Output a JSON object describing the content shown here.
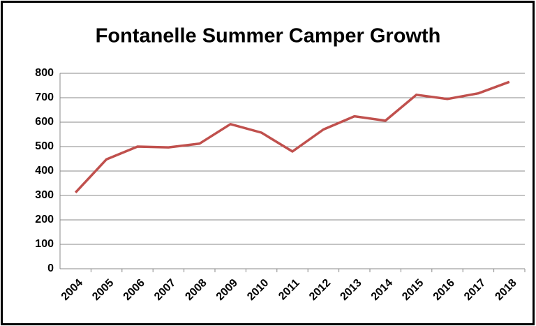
{
  "chart_data": {
    "type": "line",
    "title": "Fontanelle Summer Camper Growth",
    "categories": [
      "2004",
      "2005",
      "2006",
      "2007",
      "2008",
      "2009",
      "2010",
      "2011",
      "2012",
      "2013",
      "2014",
      "2015",
      "2016",
      "2017",
      "2018"
    ],
    "values": [
      312,
      448,
      500,
      497,
      512,
      592,
      557,
      480,
      570,
      624,
      606,
      712,
      695,
      718,
      765
    ],
    "color": "#c0504d",
    "ylim": [
      0,
      800
    ],
    "yticks": [
      0,
      100,
      200,
      300,
      400,
      500,
      600,
      700,
      800
    ],
    "grid": true
  }
}
